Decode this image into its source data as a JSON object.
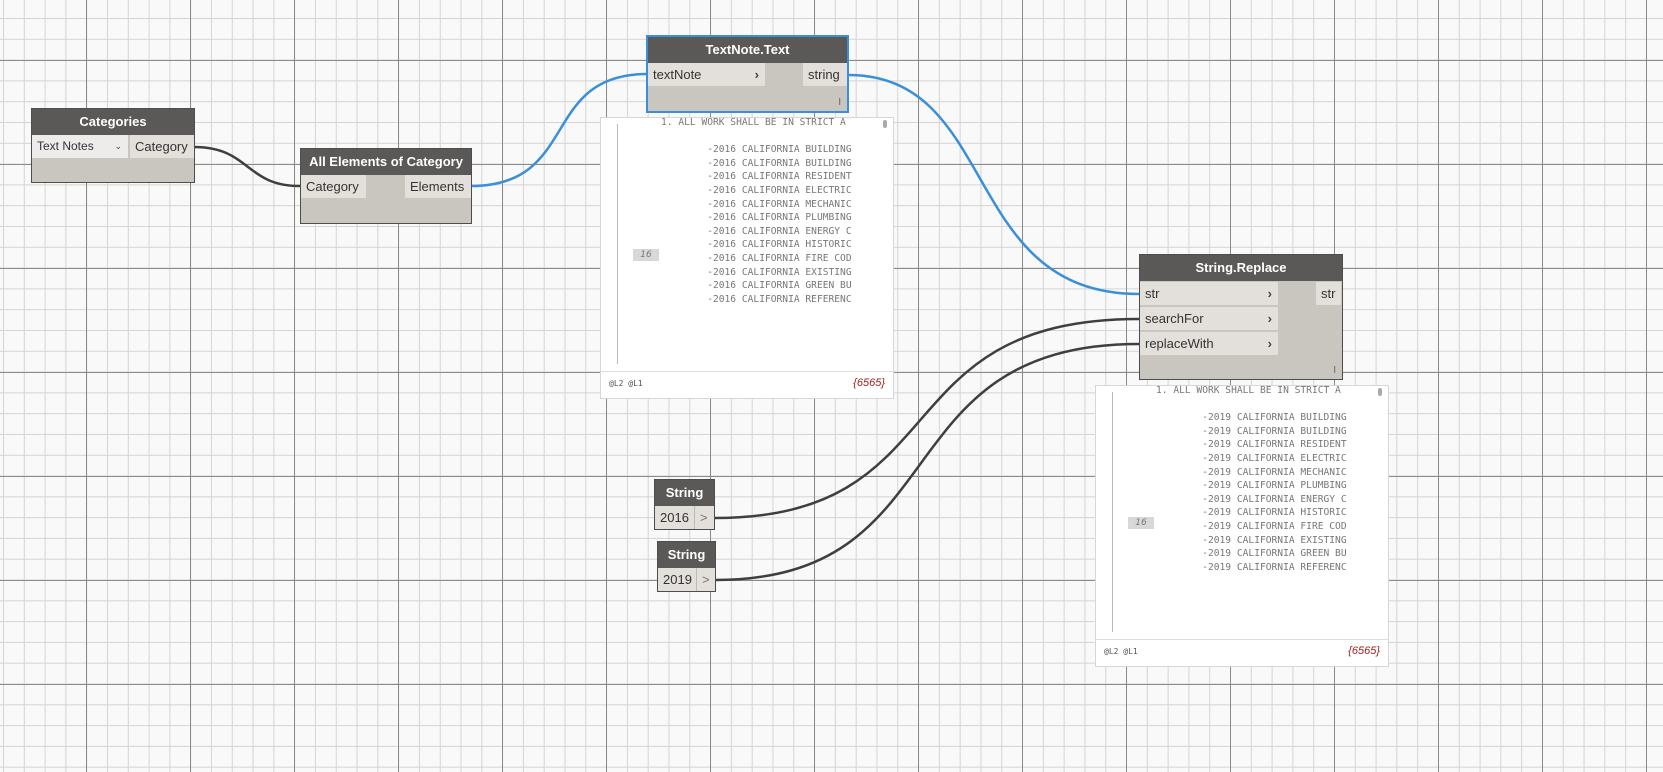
{
  "colors": {
    "selected_wire": "#3b8fd9",
    "wire": "#3f3f3f",
    "node_header": "#5b5957",
    "count": "#a02020"
  },
  "categories_node": {
    "title": "Categories",
    "dropdown_value": "Text Notes",
    "output": "Category"
  },
  "all_elements_node": {
    "title": "All Elements of Category",
    "input": "Category",
    "output": "Elements"
  },
  "textnote_node": {
    "title": "TextNote.Text",
    "input": "textNote",
    "output": "string",
    "lacing": "l"
  },
  "preview1": {
    "lines": [
      "1. ALL WORK SHALL BE IN STRICT A",
      "",
      "        -2016 CALIFORNIA BUILDING",
      "        -2016 CALIFORNIA BUILDING",
      "        -2016 CALIFORNIA RESIDENT",
      "        -2016 CALIFORNIA ELECTRIC",
      "        -2016 CALIFORNIA MECHANIC",
      "        -2016 CALIFORNIA PLUMBING",
      "        -2016 CALIFORNIA ENERGY C",
      "        -2016 CALIFORNIA HISTORIC",
      "        -2016 CALIFORNIA FIRE COD",
      "        -2016 CALIFORNIA EXISTING",
      "        -2016 CALIFORNIA GREEN BU",
      "        -2016 CALIFORNIA REFERENC"
    ],
    "index": "16",
    "levels": "@L2 @L1",
    "count": "{6565}"
  },
  "replace_node": {
    "title": "String.Replace",
    "inputs": [
      "str",
      "searchFor",
      "replaceWith"
    ],
    "output": "str",
    "lacing": "l"
  },
  "preview2": {
    "lines": [
      "1. ALL WORK SHALL BE IN STRICT A",
      "",
      "        -2019 CALIFORNIA BUILDING",
      "        -2019 CALIFORNIA BUILDING",
      "        -2019 CALIFORNIA RESIDENT",
      "        -2019 CALIFORNIA ELECTRIC",
      "        -2019 CALIFORNIA MECHANIC",
      "        -2019 CALIFORNIA PLUMBING",
      "        -2019 CALIFORNIA ENERGY C",
      "        -2019 CALIFORNIA HISTORIC",
      "        -2019 CALIFORNIA FIRE COD",
      "        -2019 CALIFORNIA EXISTING",
      "        -2019 CALIFORNIA GREEN BU",
      "        -2019 CALIFORNIA REFERENC"
    ],
    "index": "16",
    "levels": "@L2 @L1",
    "count": "{6565}"
  },
  "string_node_1": {
    "title": "String",
    "value": "2016",
    "output": ">"
  },
  "string_node_2": {
    "title": "String",
    "value": "2019",
    "output": ">"
  }
}
